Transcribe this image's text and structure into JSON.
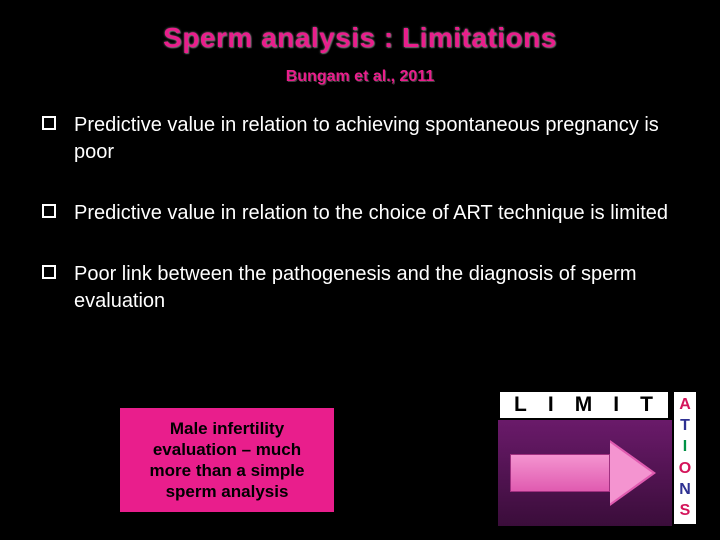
{
  "title": "Sperm analysis : Limitations",
  "citation": "Bungam et al., 2011",
  "bullets": [
    "Predictive value in relation to achieving spontaneous pregnancy is poor",
    "Predictive value in relation to the choice of ART technique is limited",
    "Poor link between the pathogenesis and the diagnosis of sperm evaluation"
  ],
  "callout": "Male infertility evaluation – much more than a simple sperm analysis",
  "limitations_graphic": {
    "top_letters": [
      "L",
      "I",
      "M",
      "I",
      "T"
    ],
    "side_letters": [
      {
        "char": "A",
        "color": "#d4145a"
      },
      {
        "char": "T",
        "color": "#2e3192"
      },
      {
        "char": "I",
        "color": "#009245"
      },
      {
        "char": "O",
        "color": "#d4145a"
      },
      {
        "char": "N",
        "color": "#2e3192"
      },
      {
        "char": "S",
        "color": "#d4145a"
      }
    ],
    "arrow_color_light": "#f494d0",
    "arrow_color_dark": "#e05bb0",
    "arrow_bg_top": "#6a1a6a",
    "arrow_bg_bottom": "#3a0d3a"
  },
  "colors": {
    "background": "#000000",
    "title_color": "#e91e8c",
    "body_text": "#ffffff",
    "callout_bg": "#e91e8c",
    "callout_text": "#000000"
  }
}
